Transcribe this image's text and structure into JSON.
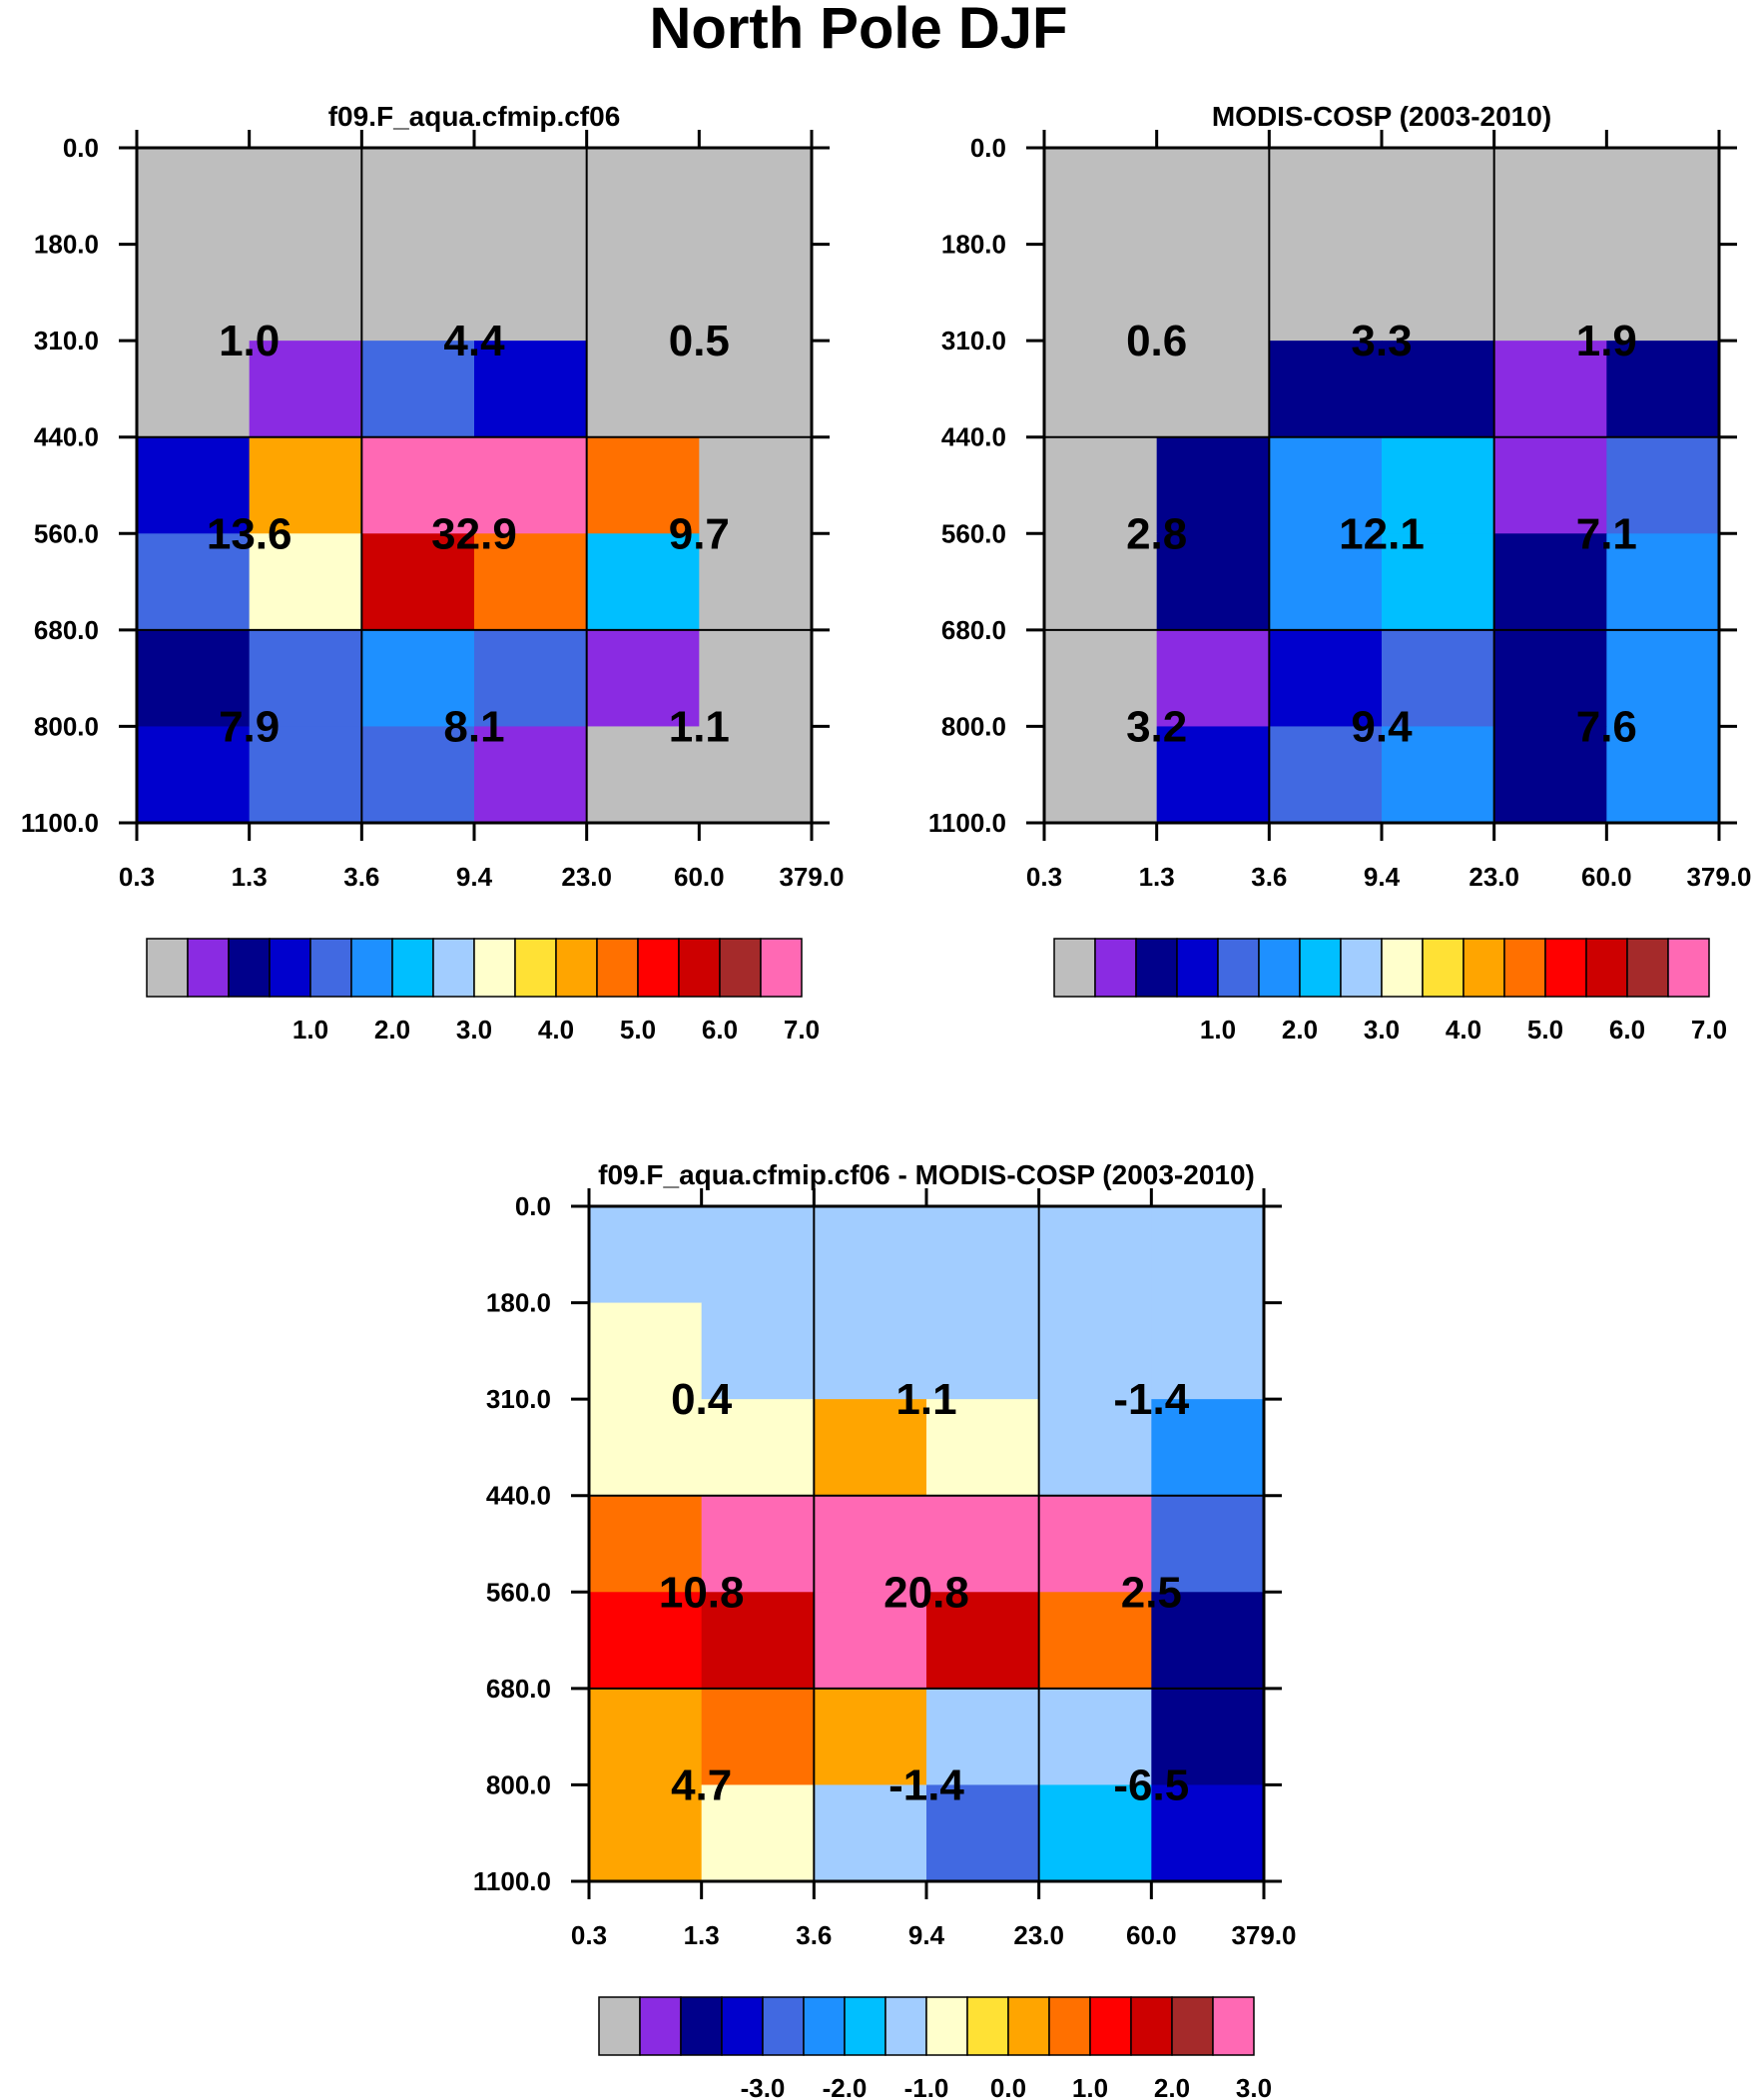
{
  "title": "North Pole DJF",
  "colors": [
    "#bebebe",
    "#8a2be2",
    "#00008b",
    "#0000cd",
    "#4169e1",
    "#1e90ff",
    "#00bfff",
    "#a2cdff",
    "#ffffcc",
    "#ffe135",
    "#ffa500",
    "#ff7000",
    "#ff0000",
    "#cd0000",
    "#a52a2a",
    "#ff69b4"
  ],
  "chart_data": [
    {
      "type": "heatmap",
      "title": "f09.F_aqua.cfmip.cf06",
      "x_ticks": [
        "0.3",
        "1.3",
        "3.6",
        "9.4",
        "23.0",
        "60.0",
        "379.0"
      ],
      "y_ticks": [
        "0.0",
        "180.0",
        "310.0",
        "440.0",
        "560.0",
        "680.0",
        "800.0",
        "1100.0"
      ],
      "cell_colors": [
        [
          0,
          0,
          0,
          0,
          0,
          0
        ],
        [
          0,
          0,
          0,
          0,
          0,
          0
        ],
        [
          0,
          1,
          4,
          3,
          0,
          0
        ],
        [
          3,
          10,
          15,
          15,
          11,
          0
        ],
        [
          4,
          8,
          13,
          11,
          6,
          0
        ],
        [
          2,
          4,
          5,
          4,
          1,
          0
        ],
        [
          3,
          4,
          4,
          1,
          0,
          0
        ]
      ],
      "group_labels": [
        [
          "1.0",
          "4.4",
          "0.5"
        ],
        [
          "13.6",
          "32.9",
          "9.7"
        ],
        [
          "7.9",
          "8.1",
          "1.1"
        ]
      ],
      "colorbar_labels": [
        "1.0",
        "2.0",
        "3.0",
        "4.0",
        "5.0",
        "6.0",
        "7.0"
      ]
    },
    {
      "type": "heatmap",
      "title": "MODIS-COSP (2003-2010)",
      "x_ticks": [
        "0.3",
        "1.3",
        "3.6",
        "9.4",
        "23.0",
        "60.0",
        "379.0"
      ],
      "y_ticks": [
        "0.0",
        "180.0",
        "310.0",
        "440.0",
        "560.0",
        "680.0",
        "800.0",
        "1100.0"
      ],
      "cell_colors": [
        [
          0,
          0,
          0,
          0,
          0,
          0
        ],
        [
          0,
          0,
          0,
          0,
          0,
          0
        ],
        [
          0,
          0,
          2,
          2,
          1,
          2
        ],
        [
          0,
          2,
          5,
          6,
          1,
          4
        ],
        [
          0,
          2,
          5,
          6,
          2,
          5
        ],
        [
          0,
          1,
          3,
          4,
          2,
          5
        ],
        [
          0,
          3,
          4,
          5,
          2,
          5
        ]
      ],
      "group_labels": [
        [
          "0.6",
          "3.3",
          "1.9"
        ],
        [
          "2.8",
          "12.1",
          "7.1"
        ],
        [
          "3.2",
          "9.4",
          "7.6"
        ]
      ],
      "colorbar_labels": [
        "1.0",
        "2.0",
        "3.0",
        "4.0",
        "5.0",
        "6.0",
        "7.0"
      ]
    },
    {
      "type": "heatmap",
      "title": "f09.F_aqua.cfmip.cf06 - MODIS-COSP (2003-2010)",
      "x_ticks": [
        "0.3",
        "1.3",
        "3.6",
        "9.4",
        "23.0",
        "60.0",
        "379.0"
      ],
      "y_ticks": [
        "0.0",
        "180.0",
        "310.0",
        "440.0",
        "560.0",
        "680.0",
        "800.0",
        "1100.0"
      ],
      "cell_colors": [
        [
          7,
          7,
          7,
          7,
          7,
          7
        ],
        [
          8,
          7,
          7,
          7,
          7,
          7
        ],
        [
          8,
          8,
          10,
          8,
          7,
          5
        ],
        [
          11,
          15,
          15,
          15,
          15,
          4
        ],
        [
          12,
          13,
          15,
          13,
          11,
          2
        ],
        [
          10,
          11,
          10,
          7,
          7,
          2
        ],
        [
          10,
          8,
          7,
          4,
          6,
          3
        ]
      ],
      "group_labels": [
        [
          "0.4",
          "1.1",
          "-1.4"
        ],
        [
          "10.8",
          "20.8",
          "2.5"
        ],
        [
          "4.7",
          "-1.4",
          "-6.5"
        ]
      ],
      "colorbar_labels": [
        "-3.0",
        "-2.0",
        "-1.0",
        "0.0",
        "1.0",
        "2.0",
        "3.0"
      ]
    }
  ]
}
